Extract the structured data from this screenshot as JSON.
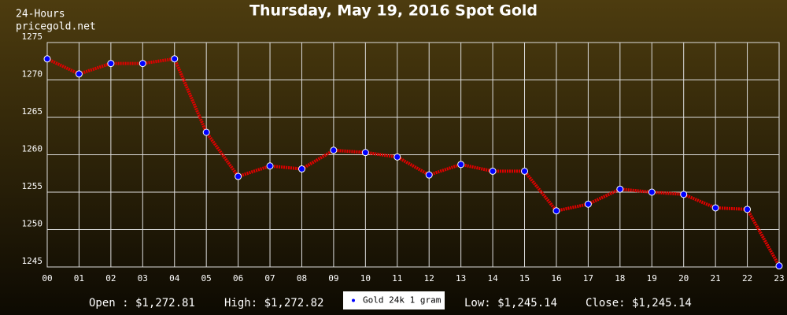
{
  "chart_data": {
    "type": "line",
    "title": "Thursday, May 19, 2016 Spot Gold",
    "subtitle": [
      "24-Hours",
      "pricegold.net"
    ],
    "categories": [
      "00",
      "01",
      "02",
      "03",
      "04",
      "05",
      "06",
      "07",
      "08",
      "09",
      "10",
      "11",
      "12",
      "13",
      "14",
      "15",
      "16",
      "17",
      "18",
      "19",
      "20",
      "21",
      "22",
      "23"
    ],
    "series": [
      {
        "name": "Gold 24k 1 gram",
        "color": "#e00000",
        "marker_color": "#0000ff",
        "values": [
          1272.81,
          1270.8,
          1272.2,
          1272.2,
          1272.82,
          1263.0,
          1257.1,
          1258.5,
          1258.1,
          1260.6,
          1260.3,
          1259.7,
          1257.3,
          1258.7,
          1257.8,
          1257.8,
          1252.5,
          1253.4,
          1255.4,
          1255.0,
          1254.7,
          1252.9,
          1252.7,
          1245.14
        ]
      }
    ],
    "ylim": [
      1245,
      1275
    ],
    "yticks": [
      1245,
      1250,
      1255,
      1260,
      1265,
      1270,
      1275
    ],
    "grid": true,
    "summary": [
      "Open : $1,272.81",
      "High: $1,272.82",
      "Low: $1,245.14",
      "Close: $1,245.14"
    ]
  }
}
